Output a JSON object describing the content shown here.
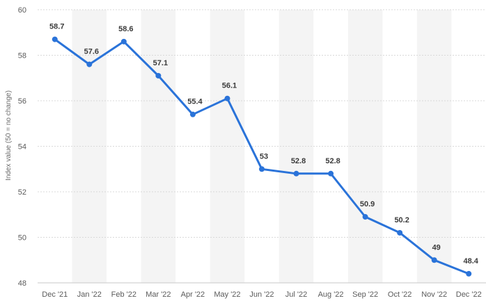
{
  "chart_data": {
    "type": "line",
    "title": "",
    "xlabel": "",
    "ylabel": "Index value (50 = no change)",
    "categories": [
      "Dec '21",
      "Jan '22",
      "Feb '22",
      "Mar '22",
      "Apr '22",
      "May '22",
      "Jun '22",
      "Jul '22",
      "Aug '22",
      "Sep '22",
      "Oct '22",
      "Nov '22",
      "Dec '22"
    ],
    "series": [
      {
        "values": [
          58.7,
          57.6,
          58.6,
          57.1,
          55.4,
          56.1,
          53,
          52.8,
          52.8,
          50.9,
          50.2,
          49,
          48.4
        ],
        "data_labels": [
          "58.7",
          "57.6",
          "58.6",
          "57.1",
          "55.4",
          "56.1",
          "53",
          "52.8",
          "52.8",
          "50.9",
          "50.2",
          "49",
          "48.4"
        ]
      }
    ],
    "yticks": [
      48,
      50,
      52,
      54,
      56,
      58,
      60
    ],
    "ylim": [
      48,
      60
    ],
    "grid": true,
    "legend": "none",
    "colors": {
      "line": "#2a73d9",
      "band": "#f4f4f4",
      "grid": "#d9d9d9",
      "baseline": "#c7c7c7"
    }
  }
}
